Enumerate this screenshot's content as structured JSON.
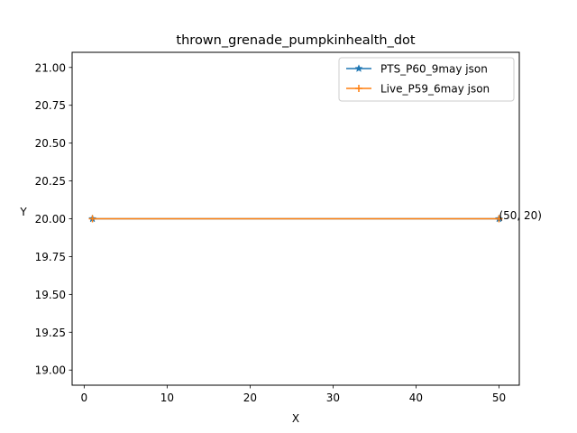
{
  "chart_data": {
    "type": "line",
    "title": "thrown_grenade_pumpkinhealth_dot",
    "xlabel": "X",
    "ylabel": "Y",
    "xlim": [
      -1.45,
      52.45
    ],
    "ylim": [
      18.9,
      21.1
    ],
    "xticks": [
      {
        "value": 0,
        "label": "0"
      },
      {
        "value": 10,
        "label": "10"
      },
      {
        "value": 20,
        "label": "20"
      },
      {
        "value": 30,
        "label": "30"
      },
      {
        "value": 40,
        "label": "40"
      },
      {
        "value": 50,
        "label": "50"
      }
    ],
    "yticks": [
      {
        "value": 19.0,
        "label": "19.00"
      },
      {
        "value": 19.25,
        "label": "19.25"
      },
      {
        "value": 19.5,
        "label": "19.50"
      },
      {
        "value": 19.75,
        "label": "19.75"
      },
      {
        "value": 20.0,
        "label": "20.00"
      },
      {
        "value": 20.25,
        "label": "20.25"
      },
      {
        "value": 20.5,
        "label": "20.50"
      },
      {
        "value": 20.75,
        "label": "20.75"
      },
      {
        "value": 21.0,
        "label": "21.00"
      }
    ],
    "grid": false,
    "legend_position": "top-right",
    "series": [
      {
        "name": "PTS_P60_9may json",
        "marker": "star",
        "color": "#1f77b4",
        "x": [
          1,
          50
        ],
        "y": [
          20,
          20
        ]
      },
      {
        "name": "Live_P59_6may json",
        "marker": "plus",
        "color": "#ff7f0e",
        "x": [
          1,
          50
        ],
        "y": [
          20,
          20
        ]
      }
    ],
    "annotations": [
      {
        "text": "(50, 20)",
        "x": 50,
        "y": 20
      }
    ]
  }
}
